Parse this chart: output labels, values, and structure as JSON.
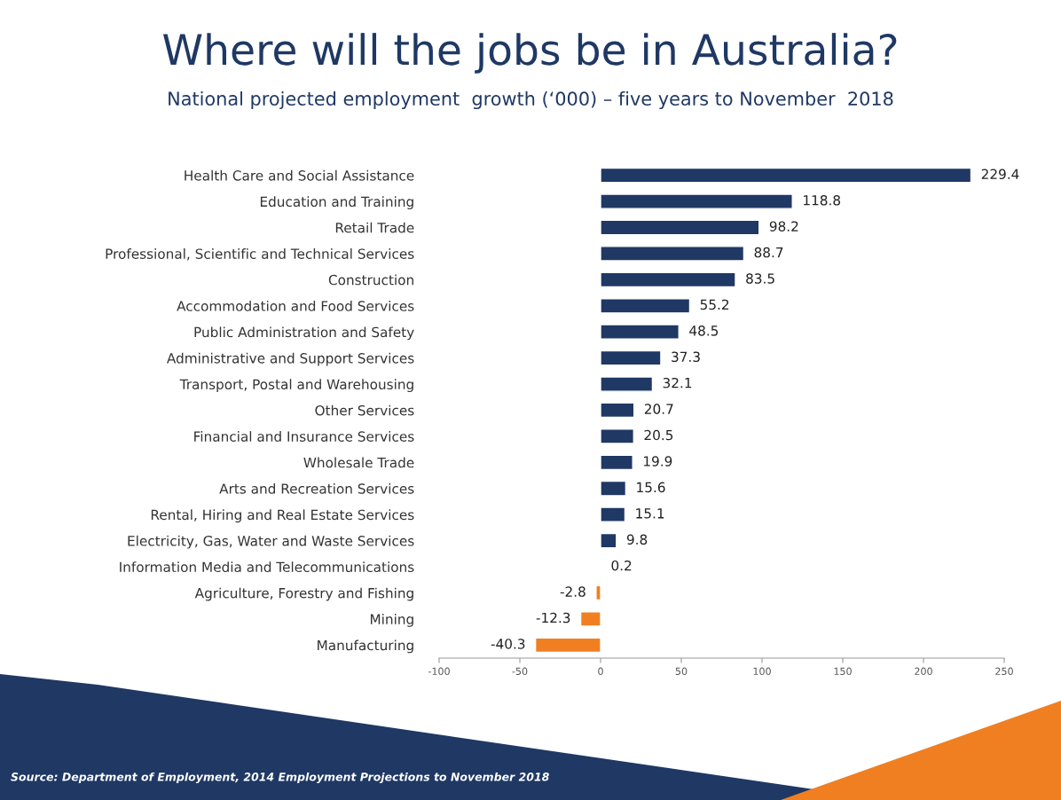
{
  "chart_data": {
    "type": "bar",
    "orientation": "horizontal",
    "title": "Where will the jobs be in Australia?",
    "subtitle": "National projected employment  growth (‘000) – five years to November  2018",
    "categories": [
      "Health Care and Social Assistance",
      "Education and Training",
      "Retail Trade",
      "Professional, Scientific and Technical Services",
      "Construction",
      "Accommodation and Food Services",
      "Public Administration and Safety",
      "Administrative and Support Services",
      "Transport, Postal and Warehousing",
      "Other Services",
      "Financial and Insurance Services",
      "Wholesale Trade",
      "Arts and Recreation Services",
      "Rental, Hiring and Real Estate Services",
      "Electricity, Gas, Water and Waste Services",
      "Information Media and Telecommunications",
      "Agriculture, Forestry and Fishing",
      "Mining",
      "Manufacturing"
    ],
    "values": [
      229.4,
      118.8,
      98.2,
      88.7,
      83.5,
      55.2,
      48.5,
      37.3,
      32.1,
      20.7,
      20.5,
      19.9,
      15.6,
      15.1,
      9.8,
      0.2,
      -2.8,
      -12.3,
      -40.3
    ],
    "colors": [
      "#1f3864",
      "#1f3864",
      "#1f3864",
      "#1f3864",
      "#1f3864",
      "#1f3864",
      "#1f3864",
      "#1f3864",
      "#1f3864",
      "#1f3864",
      "#1f3864",
      "#1f3864",
      "#1f3864",
      "#1f3864",
      "#1f3864",
      "#1f3864",
      "#f07f22",
      "#f07f22",
      "#f07f22"
    ],
    "data_labels": true,
    "xlim": [
      -100,
      250
    ],
    "xticks": [
      -100,
      -50,
      0,
      50,
      100,
      150,
      200,
      250
    ],
    "grid": false,
    "annotations": [
      "Source: Department of Employment, 2014 Employment Projections to November 2018"
    ]
  }
}
